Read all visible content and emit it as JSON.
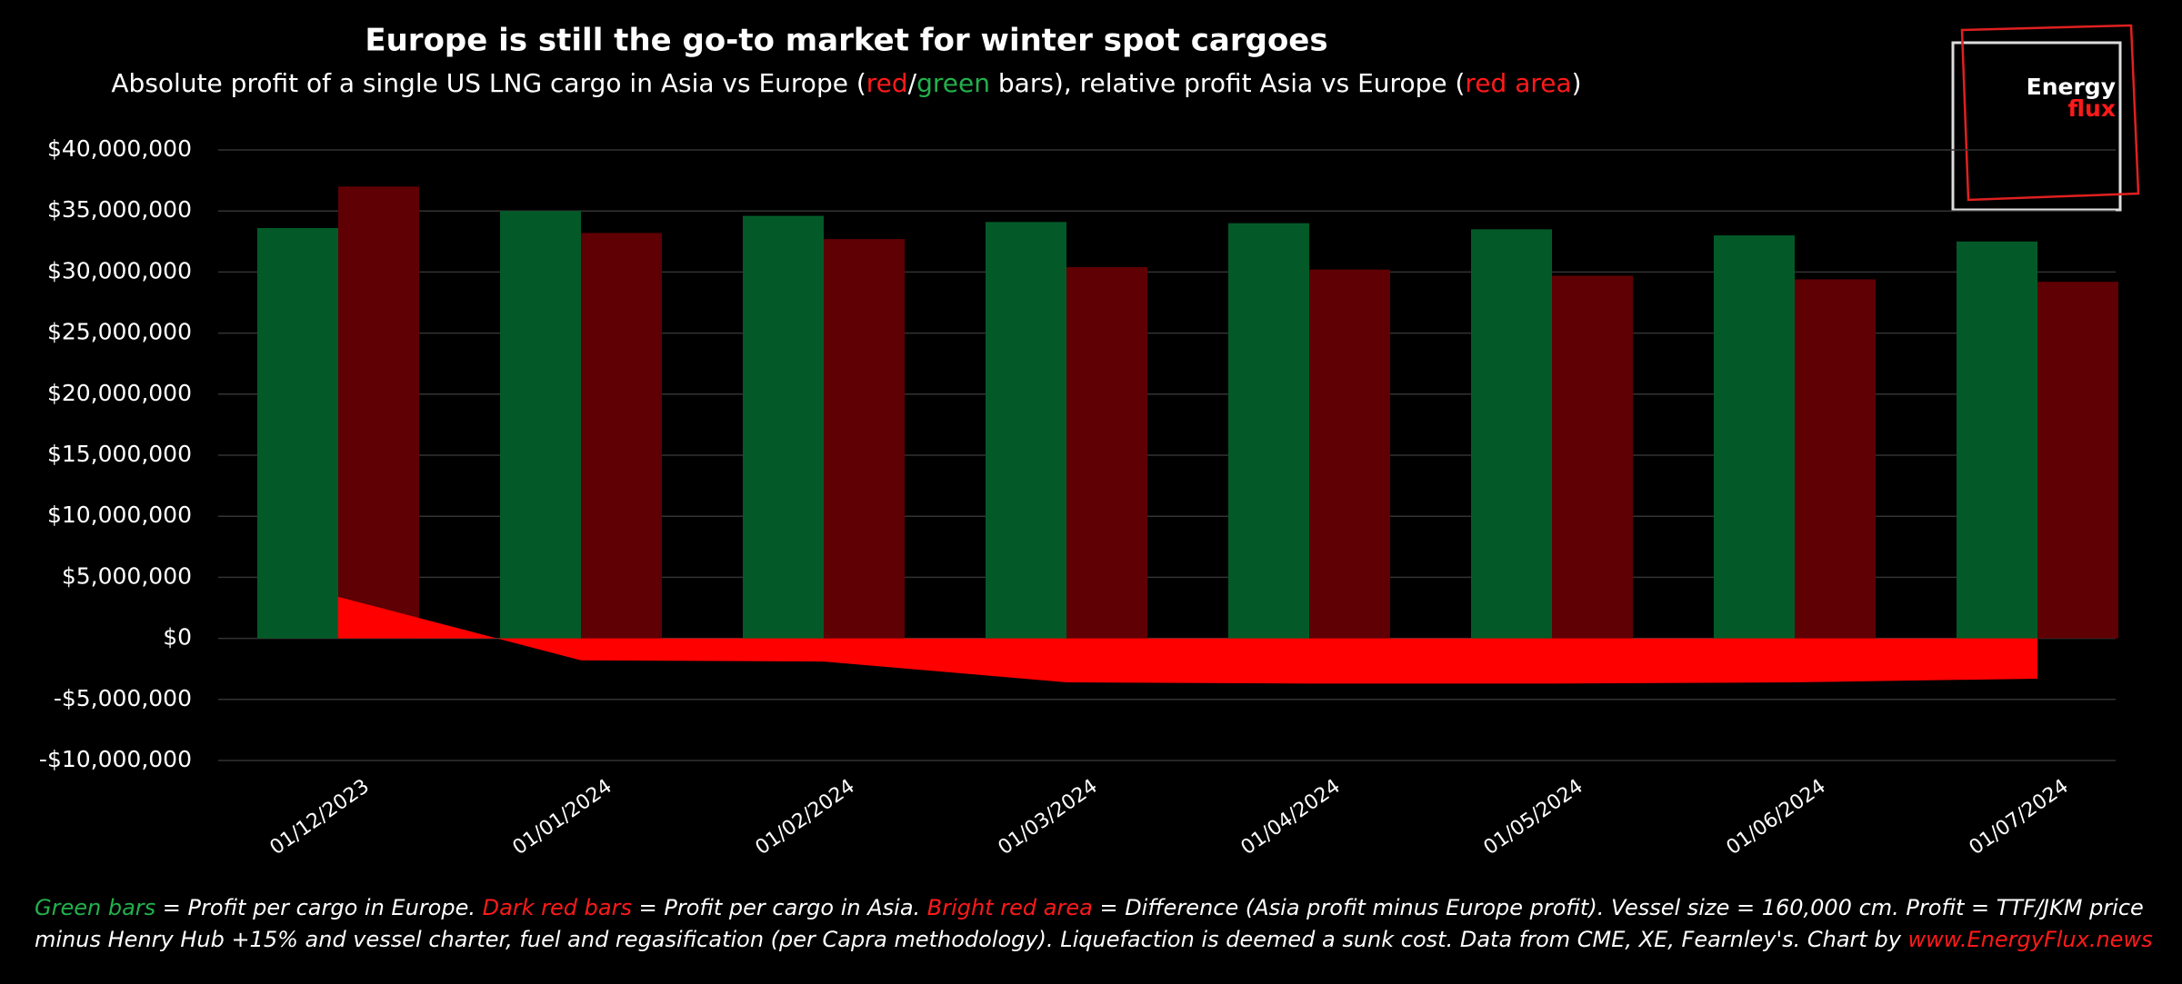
{
  "chart_data": {
    "type": "bar",
    "title": "Europe is still the go-to market for winter spot cargoes",
    "subtitle": [
      {
        "text": "Absolute profit of a single US LNG cargo in Asia vs Europe (",
        "color": "#ffffff"
      },
      {
        "text": "red",
        "color": "#ff1a1a"
      },
      {
        "text": "/",
        "color": "#ffffff"
      },
      {
        "text": "green",
        "color": "#22b14c"
      },
      {
        "text": " bars), relative profit Asia vs Europe (",
        "color": "#ffffff"
      },
      {
        "text": "red area",
        "color": "#ff1a1a"
      },
      {
        "text": ")",
        "color": "#ffffff"
      }
    ],
    "categories": [
      "01/12/2023",
      "01/01/2024",
      "01/02/2024",
      "01/03/2024",
      "01/04/2024",
      "01/05/2024",
      "01/06/2024",
      "01/07/2024"
    ],
    "series": [
      {
        "type": "bar",
        "color": "#035a28",
        "values": [
          33600000,
          35000000,
          34600000,
          34100000,
          34000000,
          33500000,
          33000000,
          32500000
        ]
      },
      {
        "type": "bar",
        "color": "#5e0004",
        "values": [
          37000000,
          33200000,
          32700000,
          30400000,
          30200000,
          29700000,
          29400000,
          29200000
        ]
      },
      {
        "type": "area",
        "color": "#ff0000",
        "values": [
          3400000,
          -1800000,
          -1900000,
          -3600000,
          -3700000,
          -3700000,
          -3600000,
          -3300000
        ]
      }
    ],
    "ylim": [
      -10000000,
      40000000
    ],
    "yticks": [
      {
        "value": -10000000,
        "label": "-$10,000,000"
      },
      {
        "value": -5000000,
        "label": "-$5,000,000"
      },
      {
        "value": 0,
        "label": "$0"
      },
      {
        "value": 5000000,
        "label": "$5,000,000"
      },
      {
        "value": 10000000,
        "label": "$10,000,000"
      },
      {
        "value": 15000000,
        "label": "$15,000,000"
      },
      {
        "value": 20000000,
        "label": "$20,000,000"
      },
      {
        "value": 25000000,
        "label": "$25,000,000"
      },
      {
        "value": 30000000,
        "label": "$30,000,000"
      },
      {
        "value": 35000000,
        "label": "$35,000,000"
      },
      {
        "value": 40000000,
        "label": "$40,000,000"
      }
    ],
    "grid": true,
    "logo": {
      "line1": "Energy",
      "line2": "flux"
    },
    "footnote": [
      {
        "text": "Green bars",
        "color": "#22b14c"
      },
      {
        "text": " = Profit per cargo in Europe. ",
        "color": "#ffffff"
      },
      {
        "text": "Dark red bars",
        "color": "#ff1a1a"
      },
      {
        "text": " = Profit per cargo in Asia. ",
        "color": "#ffffff"
      },
      {
        "text": "Bright red area",
        "color": "#ff1a1a"
      },
      {
        "text": " = Difference (Asia profit minus Europe profit). Vessel size = 160,000 cm. Profit = TTF/JKM price minus Henry Hub +15% and vessel charter, fuel and regasification (per Capra methodology). Liquefaction is deemed a sunk cost. Data from CME, XE, Fearnley's. Chart by ",
        "color": "#ffffff"
      },
      {
        "text": "www.EnergyFlux.news",
        "color": "#ff1a1a"
      }
    ]
  }
}
